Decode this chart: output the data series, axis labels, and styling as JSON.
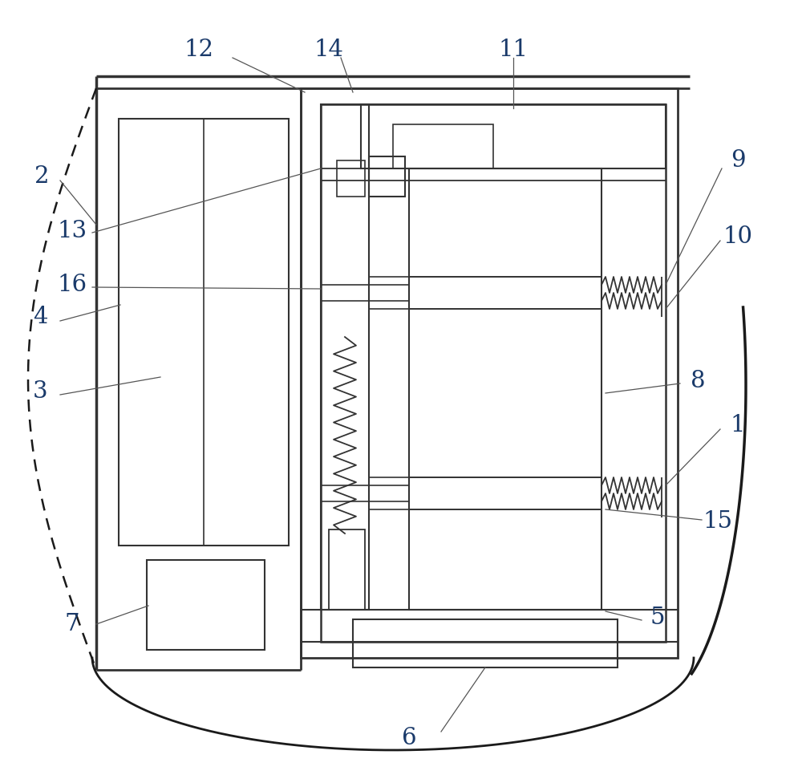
{
  "bg_color": "#ffffff",
  "line_color": "#333333",
  "label_color": "#1a3a6a",
  "fig_width": 10.0,
  "fig_height": 9.76
}
